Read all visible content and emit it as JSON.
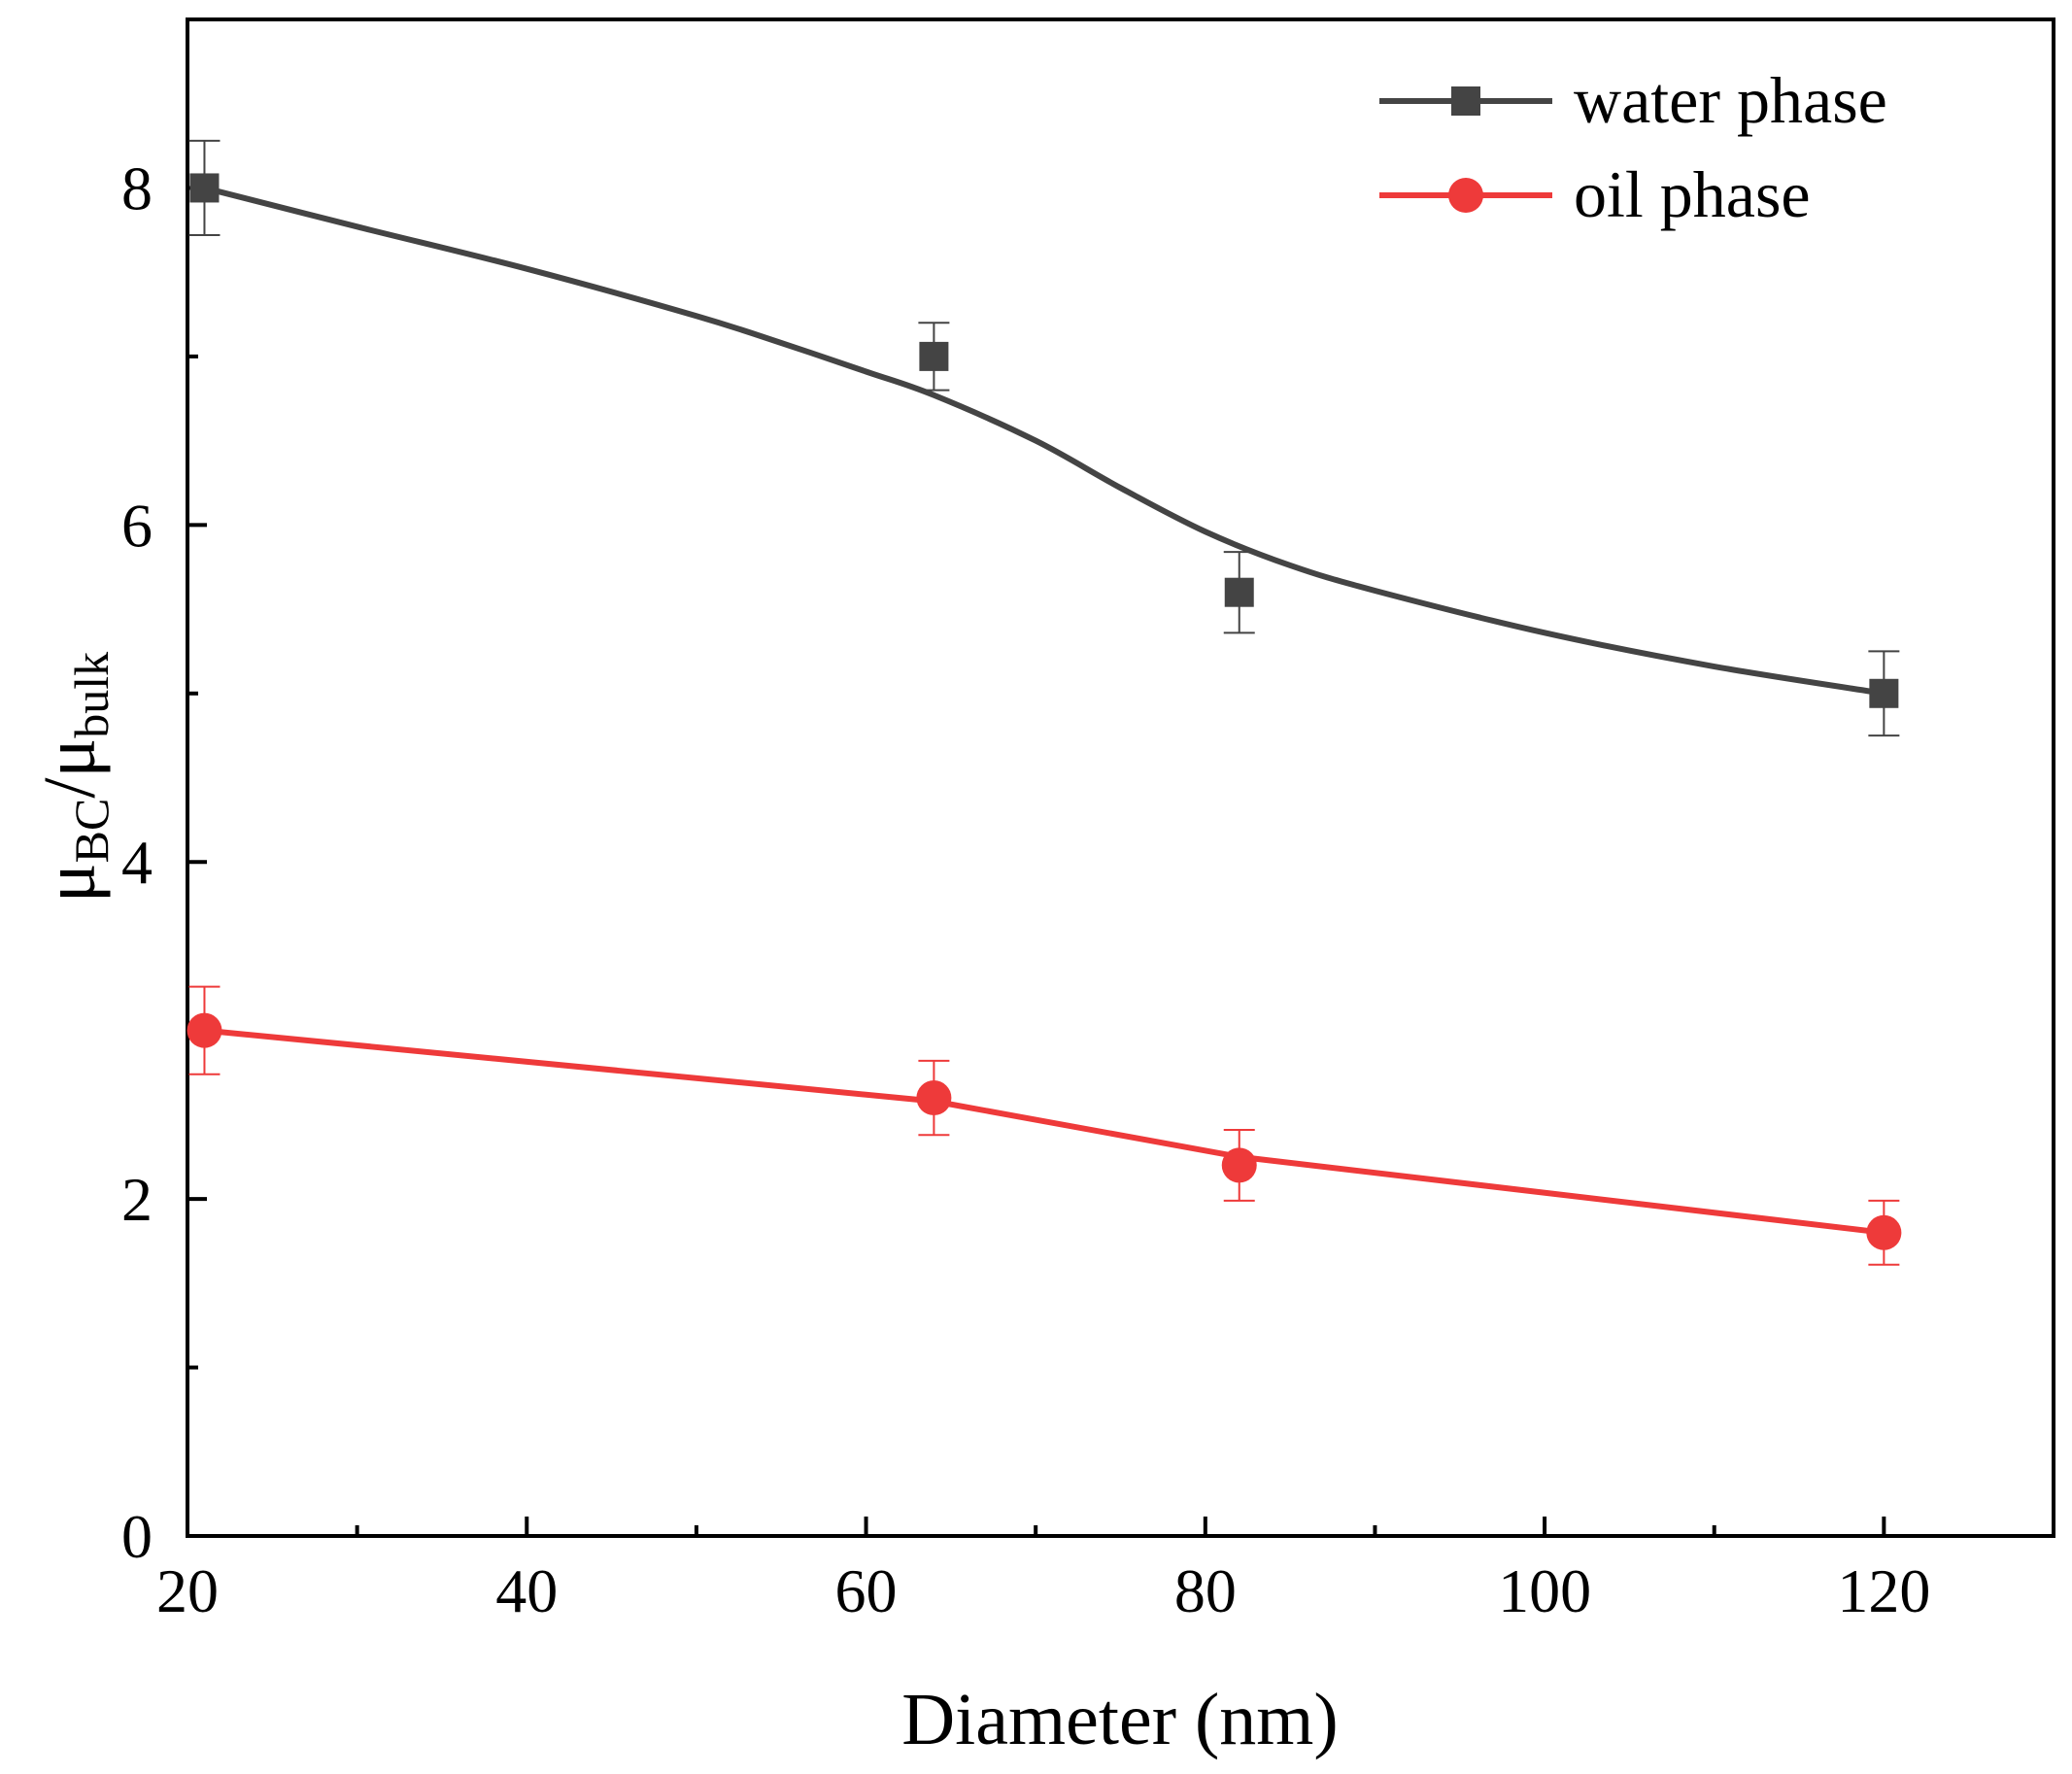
{
  "chart_data": {
    "type": "line",
    "title": "",
    "xlabel": "Diameter (nm)",
    "ylabel": {
      "base1": "μ",
      "sub1": "BC",
      "slash": "/",
      "base2": "μ",
      "sub2": "bulk"
    },
    "xlim": [
      20,
      130
    ],
    "ylim": [
      0,
      9
    ],
    "x_ticks": [
      20,
      40,
      60,
      80,
      100,
      120
    ],
    "x_minor_ticks": [
      30,
      50,
      70,
      90,
      110
    ],
    "y_ticks": [
      0,
      2,
      4,
      6,
      8
    ],
    "y_minor_ticks": [
      1,
      3,
      5,
      7
    ],
    "legend_position": "top-right",
    "series": [
      {
        "name": "water phase",
        "marker": "square",
        "color": "#444444",
        "x": [
          21,
          64,
          82,
          120
        ],
        "y": [
          8.0,
          7.0,
          5.6,
          5.0
        ],
        "err": [
          0.28,
          0.2,
          0.24,
          0.25
        ],
        "fit_x": [
          21,
          30,
          40,
          50,
          55,
          60,
          64,
          70,
          75,
          80,
          85,
          90,
          100,
          110,
          120
        ],
        "fit_y": [
          8.0,
          7.77,
          7.52,
          7.24,
          7.08,
          6.91,
          6.77,
          6.5,
          6.22,
          5.96,
          5.76,
          5.61,
          5.36,
          5.16,
          5.0
        ]
      },
      {
        "name": "oil phase",
        "marker": "circle",
        "color": "#ee3a3a",
        "x": [
          21,
          64,
          82,
          120
        ],
        "y": [
          3.0,
          2.6,
          2.2,
          1.8
        ],
        "err": [
          0.26,
          0.22,
          0.21,
          0.19
        ],
        "fit_x": [
          21,
          64,
          82,
          120
        ],
        "fit_y": [
          3.0,
          2.58,
          2.25,
          1.8
        ]
      }
    ]
  }
}
